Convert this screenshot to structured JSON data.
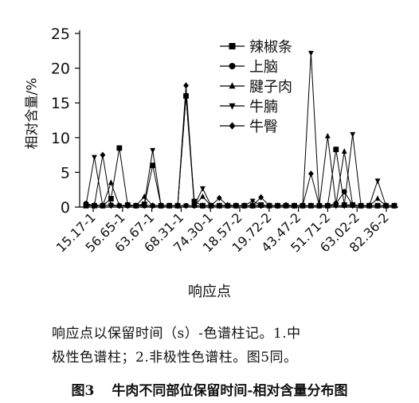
{
  "chart_data": {
    "type": "line",
    "ylabel": "相对含量/%",
    "xlabel": "响应点",
    "ylim": [
      0,
      25
    ],
    "yticks": [
      0,
      5,
      10,
      15,
      20,
      25
    ],
    "x_tick_labels": [
      "15.17-1",
      "56.65-1",
      "63.67-1",
      "68.31-1",
      "74.30-1",
      "18.57-2",
      "19.72-2",
      "43.47-2",
      "51.71-2",
      "63.02-2",
      "82.36-2"
    ],
    "num_points": 38,
    "legend_position": "top-right",
    "series": [
      {
        "name": "辣椒条",
        "marker": "square",
        "values": [
          0.2,
          0.2,
          0.2,
          1.2,
          8.5,
          0.3,
          0.2,
          0.3,
          6.0,
          0.2,
          0.2,
          0.2,
          16.0,
          0.8,
          0.2,
          0.2,
          0.2,
          0.2,
          0.2,
          0.2,
          0.2,
          0.3,
          0.2,
          0.2,
          0.2,
          0.2,
          0.2,
          0.2,
          0.2,
          0.2,
          8.3,
          0.3,
          0.3,
          0.2,
          0.2,
          0.2,
          0.2,
          0.2
        ]
      },
      {
        "name": "上脑",
        "marker": "circle",
        "values": [
          0.5,
          0.2,
          0.2,
          0.3,
          0.2,
          0.2,
          0.2,
          0.2,
          0.2,
          0.2,
          0.2,
          0.2,
          0.2,
          0.2,
          0.2,
          0.2,
          0.2,
          0.2,
          0.2,
          0.2,
          0.2,
          0.2,
          0.2,
          0.2,
          0.2,
          0.2,
          0.2,
          0.2,
          0.2,
          0.2,
          0.5,
          2.2,
          0.3,
          0.2,
          0.2,
          0.2,
          0.2,
          0.2
        ]
      },
      {
        "name": "腱子肉",
        "marker": "triangle-up",
        "values": [
          0.3,
          0.3,
          0.2,
          3.5,
          0.2,
          0.3,
          0.2,
          1.5,
          0.2,
          0.2,
          0.2,
          0.2,
          16.0,
          0.2,
          1.5,
          0.2,
          0.2,
          0.3,
          0.2,
          0.2,
          0.2,
          0.2,
          0.2,
          0.2,
          0.2,
          0.2,
          0.2,
          0.2,
          0.2,
          10.2,
          0.4,
          8.0,
          0.3,
          0.2,
          0.2,
          1.2,
          0.2,
          0.2
        ]
      },
      {
        "name": "牛腩",
        "marker": "triangle-down",
        "values": [
          0.3,
          7.2,
          0.2,
          0.3,
          0.2,
          0.2,
          0.2,
          0.5,
          8.2,
          0.2,
          0.2,
          0.2,
          0.2,
          0.2,
          2.7,
          0.2,
          0.2,
          0.2,
          0.2,
          0.2,
          0.9,
          0.2,
          0.2,
          0.2,
          0.2,
          0.2,
          0.2,
          22.2,
          0.2,
          0.2,
          0.2,
          0.2,
          10.5,
          0.2,
          0.2,
          3.8,
          0.2,
          0.2
        ]
      },
      {
        "name": "牛臀",
        "marker": "diamond",
        "values": [
          0.3,
          0.2,
          7.5,
          0.2,
          0.2,
          0.2,
          0.2,
          0.2,
          0.2,
          0.2,
          0.2,
          0.2,
          17.5,
          0.2,
          0.2,
          0.2,
          1.3,
          0.2,
          0.2,
          0.2,
          0.2,
          1.4,
          0.2,
          0.2,
          0.3,
          0.2,
          0.2,
          4.8,
          0.2,
          0.2,
          0.2,
          0.2,
          0.2,
          0.2,
          0.2,
          0.2,
          0.2,
          0.2
        ]
      }
    ]
  },
  "caption_lines": [
    "响应点以保留时间（s）-色谱柱记。1.中",
    "极性色谱柱；2.非极性色谱柱。图5同。"
  ],
  "figure_number": "图3",
  "figure_title": "牛肉不同部位保留时间-相对含量分布图"
}
